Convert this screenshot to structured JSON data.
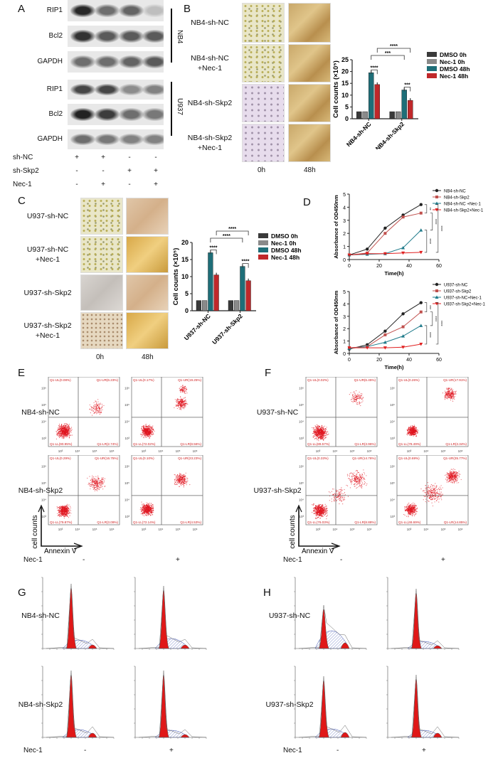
{
  "panels": {
    "A": "A",
    "B": "B",
    "C": "C",
    "D": "D",
    "E": "E",
    "F": "F",
    "G": "G",
    "H": "H"
  },
  "panel_a": {
    "rows": [
      "RIP1",
      "Bcl2",
      "GAPDH",
      "RIP1",
      "Bcl2",
      "GAPDH"
    ],
    "cell_lines": [
      "NB4",
      "U937"
    ],
    "treatments": [
      {
        "label": "sh-NC",
        "signs": [
          "+",
          "+",
          "-",
          "-"
        ]
      },
      {
        "label": "sh-Skp2",
        "signs": [
          "-",
          "-",
          "+",
          "+"
        ]
      },
      {
        "label": "Nec-1",
        "signs": [
          "-",
          "+",
          "-",
          "+"
        ]
      }
    ]
  },
  "panel_b": {
    "rows": [
      "NB4-sh-NC",
      "NB4-sh-NC\n+Nec-1",
      "NB4-sh-Skp2",
      "NB4-sh-Skp2\n+Nec-1"
    ],
    "columns": [
      "0h",
      "48h"
    ]
  },
  "panel_c": {
    "rows": [
      "U937-sh-NC",
      "U937-sh-NC\n+Nec-1",
      "U937-sh-Skp2",
      "U937-sh-Skp2\n+Nec-1"
    ],
    "columns": [
      "0h",
      "48h"
    ]
  },
  "chart_data": [
    {
      "id": "B",
      "type": "bar",
      "ylabel": "Cell counts (×10⁵)",
      "ylim": [
        0,
        25
      ],
      "yticks": [
        0,
        5,
        10,
        15,
        20,
        25
      ],
      "categories": [
        "NB4-sh-NC",
        "NB4-sh-Skp2"
      ],
      "legend": "right",
      "series": [
        {
          "name": "DMSO 0h",
          "color": "#3a3a3a",
          "values": [
            3,
            3
          ]
        },
        {
          "name": "Nec-1 0h",
          "color": "#8a8a8a",
          "values": [
            3,
            3
          ]
        },
        {
          "name": "DMSO 48h",
          "color": "#1e6e78",
          "values": [
            19.5,
            12.2
          ]
        },
        {
          "name": "Nec-1 48h",
          "color": "#c0282a",
          "values": [
            14.5,
            7.8
          ]
        }
      ],
      "significance": [
        "****",
        "***",
        "****",
        "***"
      ]
    },
    {
      "id": "C",
      "type": "bar",
      "ylabel": "Cell counts (×10⁵)",
      "ylim": [
        0,
        20
      ],
      "yticks": [
        0,
        5,
        10,
        15,
        20
      ],
      "categories": [
        "U937-sh-NC",
        "U937-sh-Skp2"
      ],
      "legend": "right",
      "series": [
        {
          "name": "DMSO 0h",
          "color": "#3a3a3a",
          "values": [
            3,
            3
          ]
        },
        {
          "name": "Nec-1 0h",
          "color": "#8a8a8a",
          "values": [
            3,
            3
          ]
        },
        {
          "name": "DMSO 48h",
          "color": "#1e6e78",
          "values": [
            17,
            13
          ]
        },
        {
          "name": "Nec-1 48h",
          "color": "#c0282a",
          "values": [
            10.5,
            8.8
          ]
        }
      ],
      "significance": [
        "****",
        "****",
        "****",
        "****"
      ]
    },
    {
      "id": "D1",
      "type": "line",
      "xlabel": "Time(h)",
      "ylabel": "Absorbance of OD450nm",
      "xlim": [
        0,
        60
      ],
      "ylim": [
        0,
        5
      ],
      "xticks": [
        0,
        20,
        40,
        60
      ],
      "yticks": [
        0,
        1,
        2,
        3,
        4,
        5
      ],
      "legend": "top-right",
      "x": [
        0,
        12,
        24,
        36,
        48
      ],
      "series": [
        {
          "name": "NB4-sh-NC",
          "color": "#222222",
          "marker": "circle",
          "values": [
            0.35,
            0.8,
            2.4,
            3.4,
            4.2
          ]
        },
        {
          "name": "NB4-sh-Skp2",
          "color": "#c0504d",
          "marker": "square",
          "values": [
            0.35,
            0.5,
            2.0,
            3.25,
            3.55
          ]
        },
        {
          "name": "NB4-sh-NC +Nec-1",
          "color": "#1e7a8a",
          "marker": "triangle",
          "values": [
            0.35,
            0.4,
            0.45,
            0.9,
            2.25
          ]
        },
        {
          "name": "NB4-sh-Skp2+Nec-1",
          "color": "#e02020",
          "marker": "triangle-down",
          "values": [
            0.35,
            0.45,
            0.45,
            0.5,
            0.55
          ]
        }
      ],
      "significance": [
        "**",
        "****",
        "****",
        "****"
      ]
    },
    {
      "id": "D2",
      "type": "line",
      "xlabel": "Time(h)",
      "ylabel": "Absorbance of OD450nm",
      "xlim": [
        0,
        60
      ],
      "ylim": [
        0,
        5
      ],
      "xticks": [
        0,
        20,
        40,
        60
      ],
      "yticks": [
        0,
        1,
        2,
        3,
        4,
        5
      ],
      "legend": "top-right",
      "x": [
        0,
        12,
        24,
        36,
        48
      ],
      "series": [
        {
          "name": "U937-sh-NC",
          "color": "#222222",
          "marker": "circle",
          "values": [
            0.35,
            0.7,
            1.8,
            3.2,
            4.1
          ]
        },
        {
          "name": "U937-sh-Skp2",
          "color": "#c0504d",
          "marker": "square",
          "values": [
            0.45,
            0.55,
            1.5,
            2.15,
            3.35
          ]
        },
        {
          "name": "U937-sh-NC+Nec-1",
          "color": "#1e7a8a",
          "marker": "triangle",
          "values": [
            0.4,
            0.55,
            0.9,
            1.4,
            2.25
          ]
        },
        {
          "name": "U937-sh-Skp2+Nec-1",
          "color": "#e02020",
          "marker": "triangle-down",
          "values": [
            0.45,
            0.45,
            0.45,
            0.5,
            0.75
          ]
        }
      ],
      "significance": [
        "***",
        "****",
        "****",
        "****"
      ]
    }
  ],
  "flow": {
    "x_axis": "Annexin V",
    "y_axis": "cell counts",
    "tick_labels": [
      "10³",
      "10⁴",
      "10⁵",
      "10⁶"
    ],
    "E": {
      "rows": [
        "NB4-sh-NC",
        "NB4-sh-Skp2"
      ],
      "plots": [
        {
          "UL": "Q1-UL(0.08%)",
          "UR": "Q1-UR(6.23%)",
          "LL": "Q1-LL(90.95%)",
          "LR": "Q1-LR(2.74%)"
        },
        {
          "UL": "Q1-UL(0.17%)",
          "UR": "Q1-UR(19.25%)",
          "LL": "Q1-LL(72.02%)",
          "LR": "Q1-LR(8.56%)"
        },
        {
          "UL": "Q1-UL(0.29%)",
          "UR": "Q1-UR(16.75%)",
          "LL": "Q1-LL(79.87%)",
          "LR": "Q1-LR(3.09%)"
        },
        {
          "UL": "Q1-UL(0.10%)",
          "UR": "Q1-UR(23.23%)",
          "LL": "Q1-LL(72.14%)",
          "LR": "Q1-LR(4.53%)"
        }
      ]
    },
    "F": {
      "rows": [
        "U937-sh-NC",
        "U937-sh-Skp2"
      ],
      "plots": [
        {
          "UL": "Q1-UL(0.02%)",
          "UR": "Q1-UR(6.45%)",
          "LL": "Q1-LL(89.57%)",
          "LR": "Q1-LR(3.96%)"
        },
        {
          "UL": "Q1-UL(0.26%)",
          "UR": "Q1-UR(17.91%)",
          "LL": "Q1-LL(78.49%)",
          "LR": "Q1-LR(3.34%)"
        },
        {
          "UL": "Q1-UL(0.33%)",
          "UR": "Q1-UR(14.76%)",
          "LL": "Q1-LL(76.03%)",
          "LR": "Q1-LR(8.88%)"
        },
        {
          "UL": "Q1-UL(0.69%)",
          "UR": "Q1-UR(35.77%)",
          "LL": "Q1-LL(48.69%)",
          "LR": "Q1-LR(14.85%)"
        }
      ]
    }
  },
  "nec1": {
    "label": "Nec-1",
    "minus": "-",
    "plus": "+"
  },
  "cycle": {
    "G": {
      "rows": [
        "NB4-sh-NC",
        "NB4-sh-Skp2"
      ]
    },
    "H": {
      "rows": [
        "U937-sh-NC",
        "U937-sh-Skp2"
      ]
    }
  }
}
